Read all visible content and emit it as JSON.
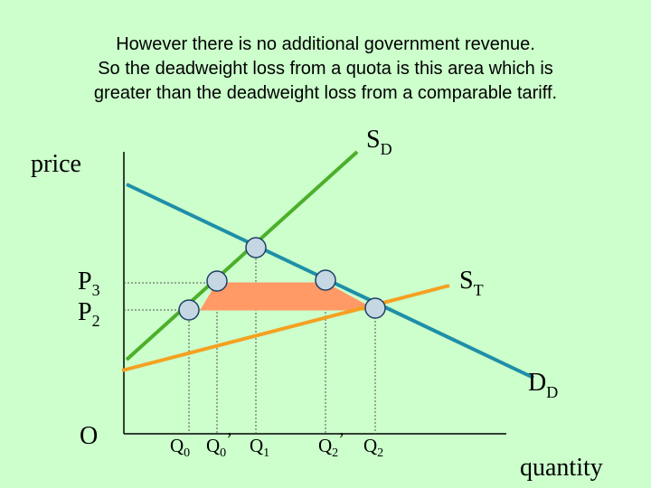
{
  "caption": {
    "line1": "However there is no additional government revenue.",
    "line2": "So the deadweight loss from a quota is this area which is",
    "line3": "greater than the deadweight loss from a comparable tariff."
  },
  "axes": {
    "y_label": "price",
    "x_label": "quantity",
    "origin_label": "O"
  },
  "prices": [
    {
      "base": "P",
      "sub": "3"
    },
    {
      "base": "P",
      "sub": "2"
    }
  ],
  "quantities": [
    {
      "base": "Q",
      "sub": "0",
      "prime": ""
    },
    {
      "base": "Q",
      "sub": "0",
      "prime": "’"
    },
    {
      "base": "Q",
      "sub": "1",
      "prime": ""
    },
    {
      "base": "Q",
      "sub": "2",
      "prime": "’"
    },
    {
      "base": "Q",
      "sub": "2",
      "prime": ""
    }
  ],
  "curves": {
    "supply_domestic": {
      "base": "S",
      "sub": "D",
      "color": "#4caf2a"
    },
    "supply_tariff": {
      "base": "S",
      "sub": "T",
      "color": "#f5a020"
    },
    "demand_domestic": {
      "base": "D",
      "sub": "D",
      "color": "#1e8fa8"
    }
  },
  "colors": {
    "deadweight_loss_area": "#ff9966",
    "equilibrium_point": "#c5d7e3",
    "guide_lines": "#555555"
  }
}
